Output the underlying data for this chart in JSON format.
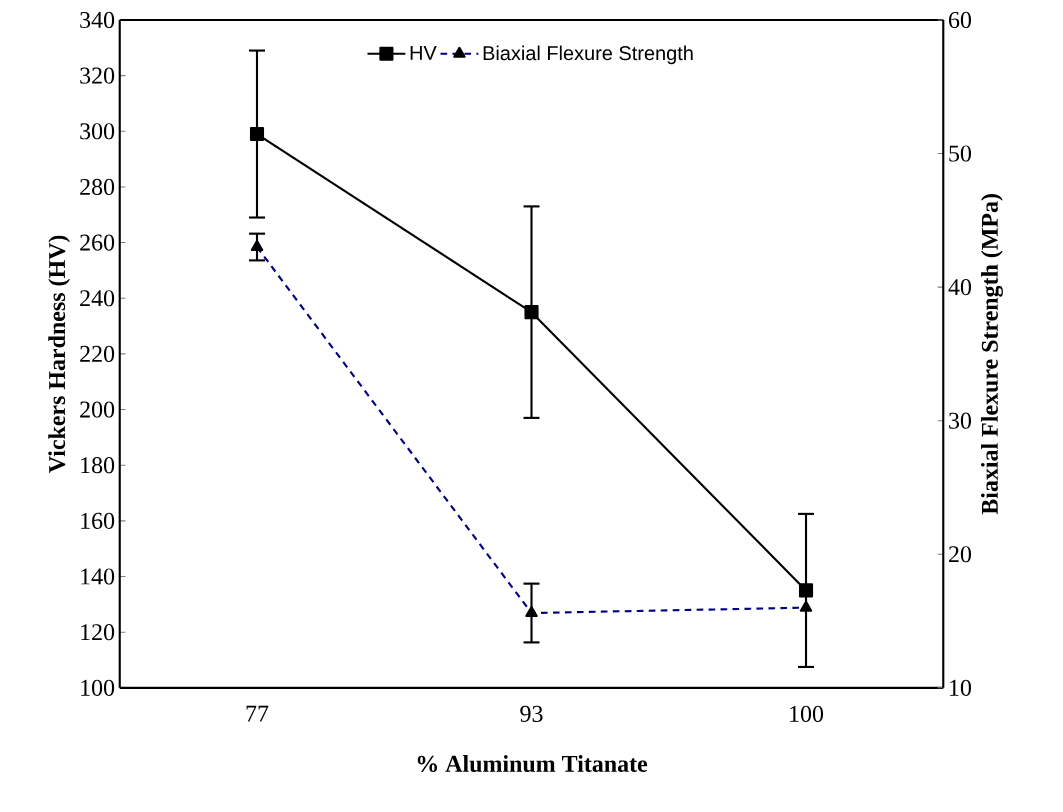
{
  "chart_data": {
    "type": "line",
    "xlabel": "% Aluminum Titanate",
    "ylabel": "Vickers Hardness (HV)",
    "y2label": "Biaxial Flexure Strength (MPa)",
    "categories": [
      "77",
      "93",
      "100"
    ],
    "series": [
      {
        "name": "HV",
        "color": "#000000",
        "values": [
          299,
          235,
          135
        ],
        "errors": [
          30,
          38,
          27.5
        ],
        "marker": "square",
        "line_style": "solid"
      },
      {
        "name": "Biaxial Flexure Strength",
        "color": "#000080",
        "values": [
          43,
          15.6,
          16
        ],
        "errors": [
          1,
          2.2,
          null
        ],
        "marker": "triangle",
        "line_style": "dashed",
        "axis": "y2"
      }
    ],
    "ylim": [
      100,
      340
    ],
    "yticks": [
      100,
      120,
      140,
      160,
      180,
      200,
      220,
      240,
      260,
      280,
      300,
      320,
      340
    ],
    "y2lim": [
      10,
      60
    ],
    "y2ticks": [
      10,
      20,
      30,
      40,
      50,
      60
    ],
    "grid": false,
    "legend": "top"
  }
}
